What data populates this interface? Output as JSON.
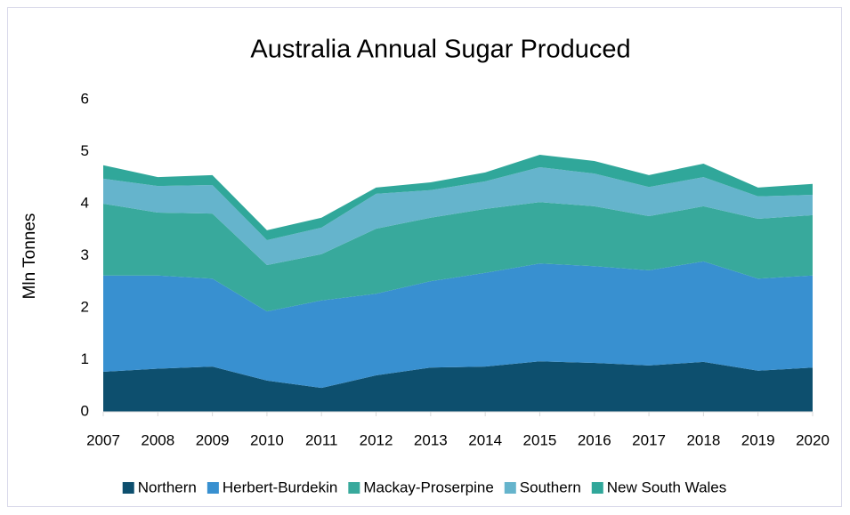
{
  "chart_data": {
    "type": "stacked-area",
    "title": "Australia Annual Sugar Produced",
    "y_label": "Mln Tonnes",
    "categories": [
      "2007",
      "2008",
      "2009",
      "2010",
      "2011",
      "2012",
      "2013",
      "2014",
      "2015",
      "2016",
      "2017",
      "2018",
      "2019",
      "2020"
    ],
    "series": [
      {
        "name": "Northern",
        "color": "#0d4f6e",
        "values": [
          0.77,
          0.83,
          0.87,
          0.6,
          0.46,
          0.7,
          0.85,
          0.87,
          0.97,
          0.94,
          0.89,
          0.96,
          0.79,
          0.85
        ]
      },
      {
        "name": "Herbert-Burdekin",
        "color": "#3890d0",
        "values": [
          1.85,
          1.79,
          1.69,
          1.33,
          1.68,
          1.57,
          1.66,
          1.8,
          1.88,
          1.86,
          1.83,
          1.93,
          1.77,
          1.77
        ]
      },
      {
        "name": "Mackay-Proserpine",
        "color": "#38a99c",
        "values": [
          1.38,
          1.21,
          1.25,
          0.89,
          0.89,
          1.25,
          1.22,
          1.23,
          1.18,
          1.15,
          1.04,
          1.06,
          1.15,
          1.16
        ]
      },
      {
        "name": "Southern",
        "color": "#65b4cc",
        "values": [
          0.48,
          0.51,
          0.55,
          0.48,
          0.51,
          0.67,
          0.53,
          0.53,
          0.67,
          0.63,
          0.56,
          0.56,
          0.43,
          0.39
        ]
      },
      {
        "name": "New South Wales",
        "color": "#30a79a",
        "values": [
          0.26,
          0.17,
          0.19,
          0.19,
          0.19,
          0.12,
          0.15,
          0.17,
          0.24,
          0.24,
          0.23,
          0.26,
          0.17,
          0.21
        ]
      }
    ],
    "ylim": [
      0,
      6
    ],
    "yticks": [
      0,
      1,
      2,
      3,
      4,
      5,
      6
    ],
    "grid": false,
    "legend": "bottom"
  }
}
